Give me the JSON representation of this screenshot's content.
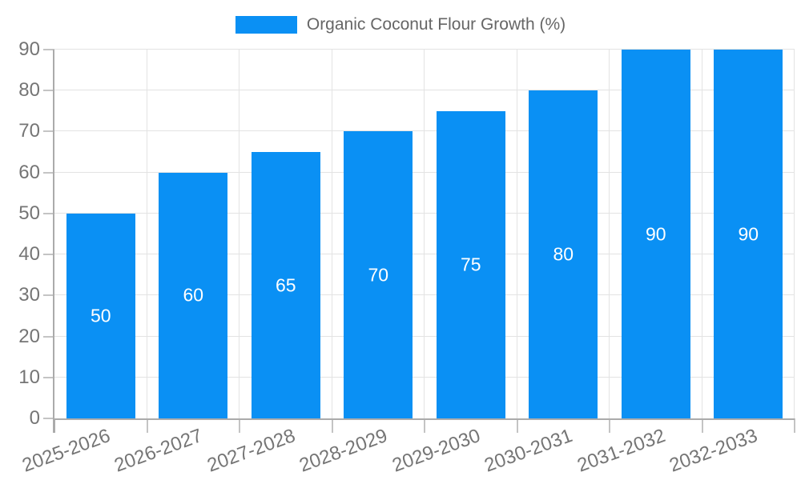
{
  "legend": {
    "label": "Organic Coconut Flour Growth (%)"
  },
  "colors": {
    "background": "#ffffff",
    "bar": "#0a90f4",
    "grid": "#e3e3e3",
    "axis": "#ababab",
    "tick": "#c4c4c4",
    "tick_text": "#757575",
    "legend_text": "#666666",
    "value_label": "#ffffff"
  },
  "chart_data": {
    "type": "bar",
    "title": "Organic Coconut Flour Growth (%)",
    "categories": [
      "2025-2026",
      "2026-2027",
      "2027-2028",
      "2028-2029",
      "2029-2030",
      "2030-2031",
      "2031-2032",
      "2032-2033"
    ],
    "series": [
      {
        "name": "Organic Coconut Flour Growth (%)",
        "color": "#0a90f4",
        "values": [
          50,
          60,
          65,
          70,
          75,
          80,
          90,
          90
        ]
      }
    ],
    "value_labels": {
      "position": "center",
      "color": "#ffffff"
    },
    "xlabel": "",
    "ylabel": "",
    "ylim": [
      0,
      90
    ],
    "ytick_step": 10,
    "yticks": [
      0,
      10,
      20,
      30,
      40,
      50,
      60,
      70,
      80,
      90
    ],
    "grid": true,
    "legend_position": "top",
    "x_tick_rotation_deg": -20
  }
}
